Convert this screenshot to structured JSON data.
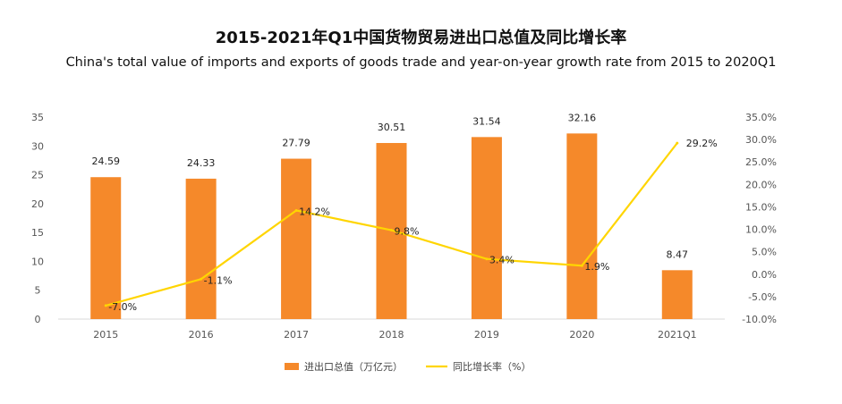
{
  "chart_data": {
    "type": "bar+line",
    "title": "2015-2021年Q1中国货物贸易进出口总值及同比增长率",
    "subtitle": "China's total value of imports and exports of goods trade and year-on-year growth rate from 2015 to 2020Q1",
    "categories": [
      "2015",
      "2016",
      "2017",
      "2018",
      "2019",
      "2020",
      "2021Q1"
    ],
    "series": [
      {
        "name": "进出口总值（万亿元）",
        "type": "bar",
        "axis": "left",
        "color": "#F5892A",
        "values": [
          24.59,
          24.33,
          27.79,
          30.51,
          31.54,
          32.16,
          8.47
        ],
        "labels": [
          "24.59",
          "24.33",
          "27.79",
          "30.51",
          "31.54",
          "32.16",
          "8.47"
        ]
      },
      {
        "name": "同比增长率（%）",
        "type": "line",
        "axis": "right",
        "color": "#FFD500",
        "values": [
          -7.0,
          -1.1,
          14.2,
          9.8,
          3.4,
          1.9,
          29.2
        ],
        "labels": [
          "-7.0%",
          "-1.1%",
          "14.2%",
          "9.8%",
          "3.4%",
          "1.9%",
          "29.2%"
        ]
      }
    ],
    "y_left": {
      "min": 0,
      "max": 35,
      "ticks": [
        "0",
        "5",
        "10",
        "15",
        "20",
        "25",
        "30",
        "35"
      ]
    },
    "y_right": {
      "min": -10,
      "max": 35,
      "ticks": [
        "-10.0%",
        "-5.0%",
        "0.0%",
        "5.0%",
        "10.0%",
        "15.0%",
        "20.0%",
        "25.0%",
        "30.0%",
        "35.0%"
      ]
    },
    "legend_position": "bottom"
  }
}
